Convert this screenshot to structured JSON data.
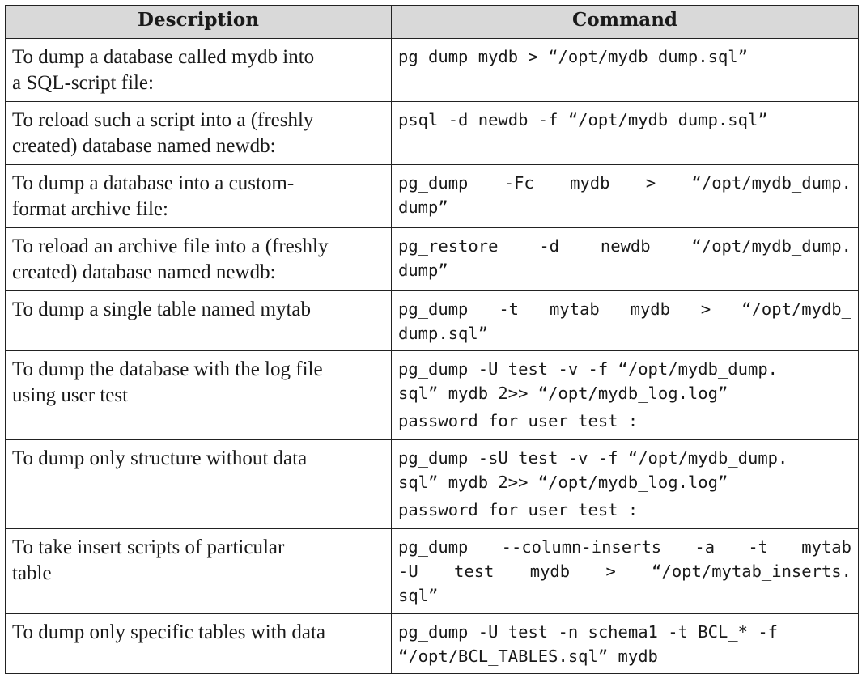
{
  "table": {
    "headers": [
      "Description",
      "Command"
    ],
    "rows": [
      {
        "description": [
          "To dump a database called mydb into",
          "a SQL-script file:"
        ],
        "command": [
          "pg_dump mydb > “/opt/mydb_dump.sql”"
        ]
      },
      {
        "description": [
          "To reload such a script into a (freshly",
          "created) database named newdb:"
        ],
        "command": [
          "psql -d newdb -f “/opt/mydb_dump.sql”"
        ]
      },
      {
        "description": [
          "To dump a database into a custom-",
          "format archive file:"
        ],
        "command": [
          "pg_dump -Fc mydb > “/opt/mydb_dump.",
          "dump”"
        ]
      },
      {
        "description": [
          "To reload an archive file into a (freshly",
          "created) database named newdb:"
        ],
        "command": [
          "pg_restore -d newdb “/opt/mydb_dump.",
          "dump”"
        ]
      },
      {
        "description": [
          "To dump a single table named mytab"
        ],
        "command": [
          "pg_dump -t mytab mydb > “/opt/mydb_",
          "dump.sql”"
        ]
      },
      {
        "description": [
          "To dump the database with the log file",
          "using user test"
        ],
        "command": [
          "pg_dump -U test -v -f “/opt/mydb_dump.",
          "sql” mydb 2>> “/opt/mydb_log.log”",
          "password for user test :"
        ]
      },
      {
        "description": [
          "To dump only structure without data"
        ],
        "command": [
          "pg_dump -sU test -v -f “/opt/mydb_dump.",
          "sql” mydb 2>> “/opt/mydb_log.log”",
          "password for user test :"
        ]
      },
      {
        "description": [
          "To take insert scripts of particular",
          "table"
        ],
        "command": [
          "pg_dump --column-inserts -a -t mytab",
          "-U test mydb > “/opt/mytab_inserts.",
          "sql”"
        ]
      },
      {
        "description": [
          "To dump only specific tables with data"
        ],
        "command": [
          "pg_dump -U test -n schema1 -t BCL_* -f",
          "“/opt/BCL_TABLES.sql” mydb"
        ]
      }
    ]
  }
}
